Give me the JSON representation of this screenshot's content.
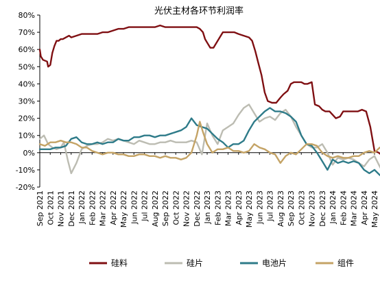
{
  "chart_data": {
    "type": "line",
    "title": "光伏主材各环节利润率",
    "xlabel": "",
    "ylabel": "",
    "ylim": [
      -0.2,
      0.8
    ],
    "yticks": [
      -0.2,
      -0.1,
      0.0,
      0.1,
      0.2,
      0.3,
      0.4,
      0.5,
      0.6,
      0.7,
      0.8
    ],
    "ytick_labels": [
      "-20%",
      "-10%",
      "0%",
      "10%",
      "20%",
      "30%",
      "40%",
      "50%",
      "60%",
      "70%",
      "80%"
    ],
    "x": [
      "Sep 2021",
      "Oct 2021",
      "Nov 2021",
      "Dec 2021",
      "Jan 2022",
      "Feb 2022",
      "Mar 2022",
      "Apr 2022",
      "May 2022",
      "Jun 2022",
      "Jul 2022",
      "Aug 2022",
      "Sep 2022",
      "Oct 2022",
      "Nov 2022",
      "Dec 2022",
      "Jan 2023",
      "Feb 2023",
      "Mar 2023",
      "Apr 2023",
      "May 2023",
      "Jun 2023",
      "Jul 2023",
      "Aug 2023",
      "Sep 2023",
      "Oct 2023",
      "Nov 2023",
      "Dec 2023",
      "Jan 2024",
      "Feb 2024",
      "Mar 2024",
      "Apr 2024",
      "May 2024"
    ],
    "legend_position": "bottom",
    "grid": false,
    "series": [
      {
        "name": "硅料",
        "color": "#7f0f12",
        "x": [
          0.0,
          0.1,
          0.3,
          0.7,
          0.8,
          1.0,
          1.2,
          1.4,
          1.6,
          1.8,
          2.0,
          2.2,
          2.5,
          2.8,
          3.0,
          3.5,
          4.0,
          4.5,
          5.0,
          5.5,
          6.0,
          6.5,
          7.0,
          7.5,
          8.0,
          8.5,
          9.0,
          9.5,
          10.0,
          10.5,
          11.0,
          11.5,
          12.0,
          12.5,
          13.0,
          13.5,
          14.0,
          14.5,
          14.8,
          15.0,
          15.3,
          15.6,
          15.8,
          16.0,
          16.3,
          16.6,
          17.0,
          17.5,
          18.0,
          18.3,
          18.6,
          19.0,
          19.5,
          20.0,
          20.3,
          20.6,
          20.9,
          21.2,
          21.5,
          21.8,
          22.2,
          22.6,
          23.0,
          23.3,
          23.7,
          24.0,
          24.3,
          24.6,
          25.0,
          25.3,
          25.6,
          26.0,
          26.3,
          26.7,
          27.0,
          27.3,
          27.7,
          28.0,
          28.3,
          28.7,
          29.0,
          29.5,
          30.0,
          30.4,
          30.8,
          31.2,
          31.6,
          32.0,
          32.4,
          32.8,
          33.0
        ],
        "values": [
          0.6,
          0.56,
          0.54,
          0.53,
          0.5,
          0.51,
          0.58,
          0.62,
          0.65,
          0.65,
          0.66,
          0.66,
          0.67,
          0.68,
          0.67,
          0.68,
          0.69,
          0.69,
          0.69,
          0.69,
          0.7,
          0.7,
          0.71,
          0.72,
          0.72,
          0.73,
          0.73,
          0.73,
          0.73,
          0.73,
          0.73,
          0.74,
          0.73,
          0.73,
          0.73,
          0.73,
          0.73,
          0.73,
          0.73,
          0.73,
          0.72,
          0.7,
          0.66,
          0.64,
          0.61,
          0.61,
          0.65,
          0.7,
          0.7,
          0.7,
          0.7,
          0.69,
          0.68,
          0.67,
          0.65,
          0.59,
          0.52,
          0.45,
          0.35,
          0.3,
          0.29,
          0.29,
          0.32,
          0.34,
          0.36,
          0.4,
          0.41,
          0.41,
          0.41,
          0.4,
          0.4,
          0.41,
          0.28,
          0.27,
          0.25,
          0.24,
          0.24,
          0.22,
          0.2,
          0.21,
          0.24,
          0.24,
          0.24,
          0.24,
          0.25,
          0.24,
          0.15,
          0.01,
          0.0,
          -0.02,
          -0.06
        ]
      },
      {
        "name": "硅片",
        "color": "#bcbcb2",
        "x": [
          0,
          0.4,
          0.8,
          1.2,
          1.6,
          2.0,
          2.3,
          2.7,
          3.0,
          3.5,
          4.0,
          4.5,
          5.0,
          5.5,
          6.0,
          6.5,
          7.0,
          7.5,
          8.0,
          8.5,
          9.0,
          9.5,
          10.0,
          10.5,
          11.0,
          11.5,
          12.0,
          12.5,
          13.0,
          13.5,
          14.0,
          14.5,
          15.0,
          15.5,
          16.0,
          16.5,
          17.0,
          17.5,
          18.0,
          18.5,
          19.0,
          19.5,
          20.0,
          20.5,
          21.0,
          21.5,
          22.0,
          22.5,
          23.0,
          23.5,
          24.0,
          24.5,
          25.0,
          25.5,
          26.0,
          26.5,
          27.0,
          27.5,
          28.0,
          28.5,
          29.0,
          29.5,
          30.0,
          30.5,
          31.0,
          31.5,
          32.0,
          32.5,
          33.0
        ],
        "values": [
          0.08,
          0.1,
          0.05,
          0.03,
          0.02,
          0.03,
          0.06,
          -0.05,
          -0.12,
          -0.06,
          0.02,
          0.04,
          0.05,
          0.05,
          0.06,
          0.08,
          0.07,
          0.08,
          0.07,
          0.06,
          0.05,
          0.07,
          0.06,
          0.05,
          0.05,
          0.06,
          0.06,
          0.07,
          0.06,
          0.06,
          0.06,
          0.07,
          0.06,
          -0.01,
          0.17,
          0.1,
          0.05,
          0.13,
          0.15,
          0.17,
          0.22,
          0.26,
          0.28,
          0.23,
          0.18,
          0.2,
          0.21,
          0.19,
          0.23,
          0.25,
          0.21,
          0.15,
          0.1,
          0.05,
          0.03,
          0.03,
          0.05,
          0.0,
          -0.07,
          -0.03,
          -0.04,
          -0.03,
          -0.04,
          -0.06,
          -0.08,
          -0.04,
          -0.02,
          -0.08,
          -0.14
        ]
      },
      {
        "name": "电池片",
        "color": "#2e7b89",
        "x": [
          0,
          0.5,
          1.0,
          1.5,
          2.0,
          2.5,
          3.0,
          3.5,
          4.0,
          4.5,
          5.0,
          5.5,
          6.0,
          6.5,
          7.0,
          7.5,
          8.0,
          8.5,
          9.0,
          9.5,
          10.0,
          10.5,
          11.0,
          11.5,
          12.0,
          12.5,
          13.0,
          13.5,
          14.0,
          14.5,
          15.0,
          15.5,
          16.0,
          16.5,
          17.0,
          17.5,
          18.0,
          18.5,
          19.0,
          19.5,
          20.0,
          20.5,
          21.0,
          21.5,
          22.0,
          22.5,
          23.0,
          23.5,
          24.0,
          24.5,
          25.0,
          25.5,
          26.0,
          26.5,
          27.0,
          27.5,
          28.0,
          28.5,
          29.0,
          29.5,
          30.0,
          30.5,
          31.0,
          31.5,
          32.0,
          32.5,
          33.0
        ],
        "values": [
          0.02,
          0.02,
          0.02,
          0.03,
          0.03,
          0.04,
          0.08,
          0.09,
          0.06,
          0.05,
          0.05,
          0.06,
          0.05,
          0.06,
          0.06,
          0.08,
          0.07,
          0.07,
          0.09,
          0.09,
          0.1,
          0.1,
          0.09,
          0.1,
          0.1,
          0.11,
          0.12,
          0.13,
          0.15,
          0.2,
          0.16,
          0.15,
          0.14,
          0.11,
          0.08,
          0.06,
          0.03,
          0.05,
          0.05,
          0.07,
          0.13,
          0.18,
          0.21,
          0.24,
          0.26,
          0.24,
          0.24,
          0.23,
          0.21,
          0.18,
          0.1,
          0.05,
          0.04,
          0.0,
          -0.05,
          -0.1,
          -0.04,
          -0.06,
          -0.05,
          -0.06,
          -0.05,
          -0.06,
          -0.1,
          -0.12,
          -0.1,
          -0.13,
          -0.15
        ]
      },
      {
        "name": "组件",
        "color": "#c4a365",
        "x": [
          0,
          0.5,
          1.0,
          1.5,
          2.0,
          2.5,
          3.0,
          3.5,
          4.0,
          4.5,
          5.0,
          5.5,
          6.0,
          6.5,
          7.0,
          7.5,
          8.0,
          8.5,
          9.0,
          9.5,
          10.0,
          10.5,
          11.0,
          11.5,
          12.0,
          12.5,
          13.0,
          13.5,
          14.0,
          14.5,
          15.0,
          15.3,
          15.6,
          16.0,
          16.5,
          17.0,
          17.5,
          18.0,
          18.5,
          19.0,
          19.5,
          20.0,
          20.5,
          21.0,
          21.5,
          22.0,
          22.5,
          23.0,
          23.5,
          24.0,
          24.5,
          25.0,
          25.5,
          26.0,
          26.5,
          27.0,
          27.5,
          28.0,
          28.5,
          29.0,
          29.5,
          30.0,
          30.5,
          31.0,
          31.5,
          32.0,
          32.5,
          33.0
        ],
        "values": [
          0.05,
          0.04,
          0.06,
          0.06,
          0.07,
          0.06,
          0.06,
          0.05,
          0.03,
          0.03,
          0.01,
          0.0,
          -0.01,
          0.0,
          0.0,
          -0.01,
          -0.01,
          -0.02,
          -0.02,
          -0.01,
          -0.01,
          -0.02,
          -0.02,
          -0.03,
          -0.02,
          -0.03,
          -0.03,
          -0.04,
          -0.03,
          0.0,
          0.1,
          0.18,
          0.12,
          0.05,
          0.0,
          0.02,
          0.02,
          0.03,
          0.01,
          0.01,
          0.0,
          0.01,
          0.05,
          0.03,
          0.02,
          0.0,
          -0.01,
          -0.06,
          -0.02,
          0.0,
          -0.01,
          0.02,
          0.05,
          0.05,
          0.04,
          0.0,
          -0.02,
          -0.03,
          -0.02,
          -0.03,
          -0.03,
          -0.02,
          -0.02,
          0.0,
          0.01,
          0.0,
          0.03,
          0.01
        ]
      }
    ]
  }
}
